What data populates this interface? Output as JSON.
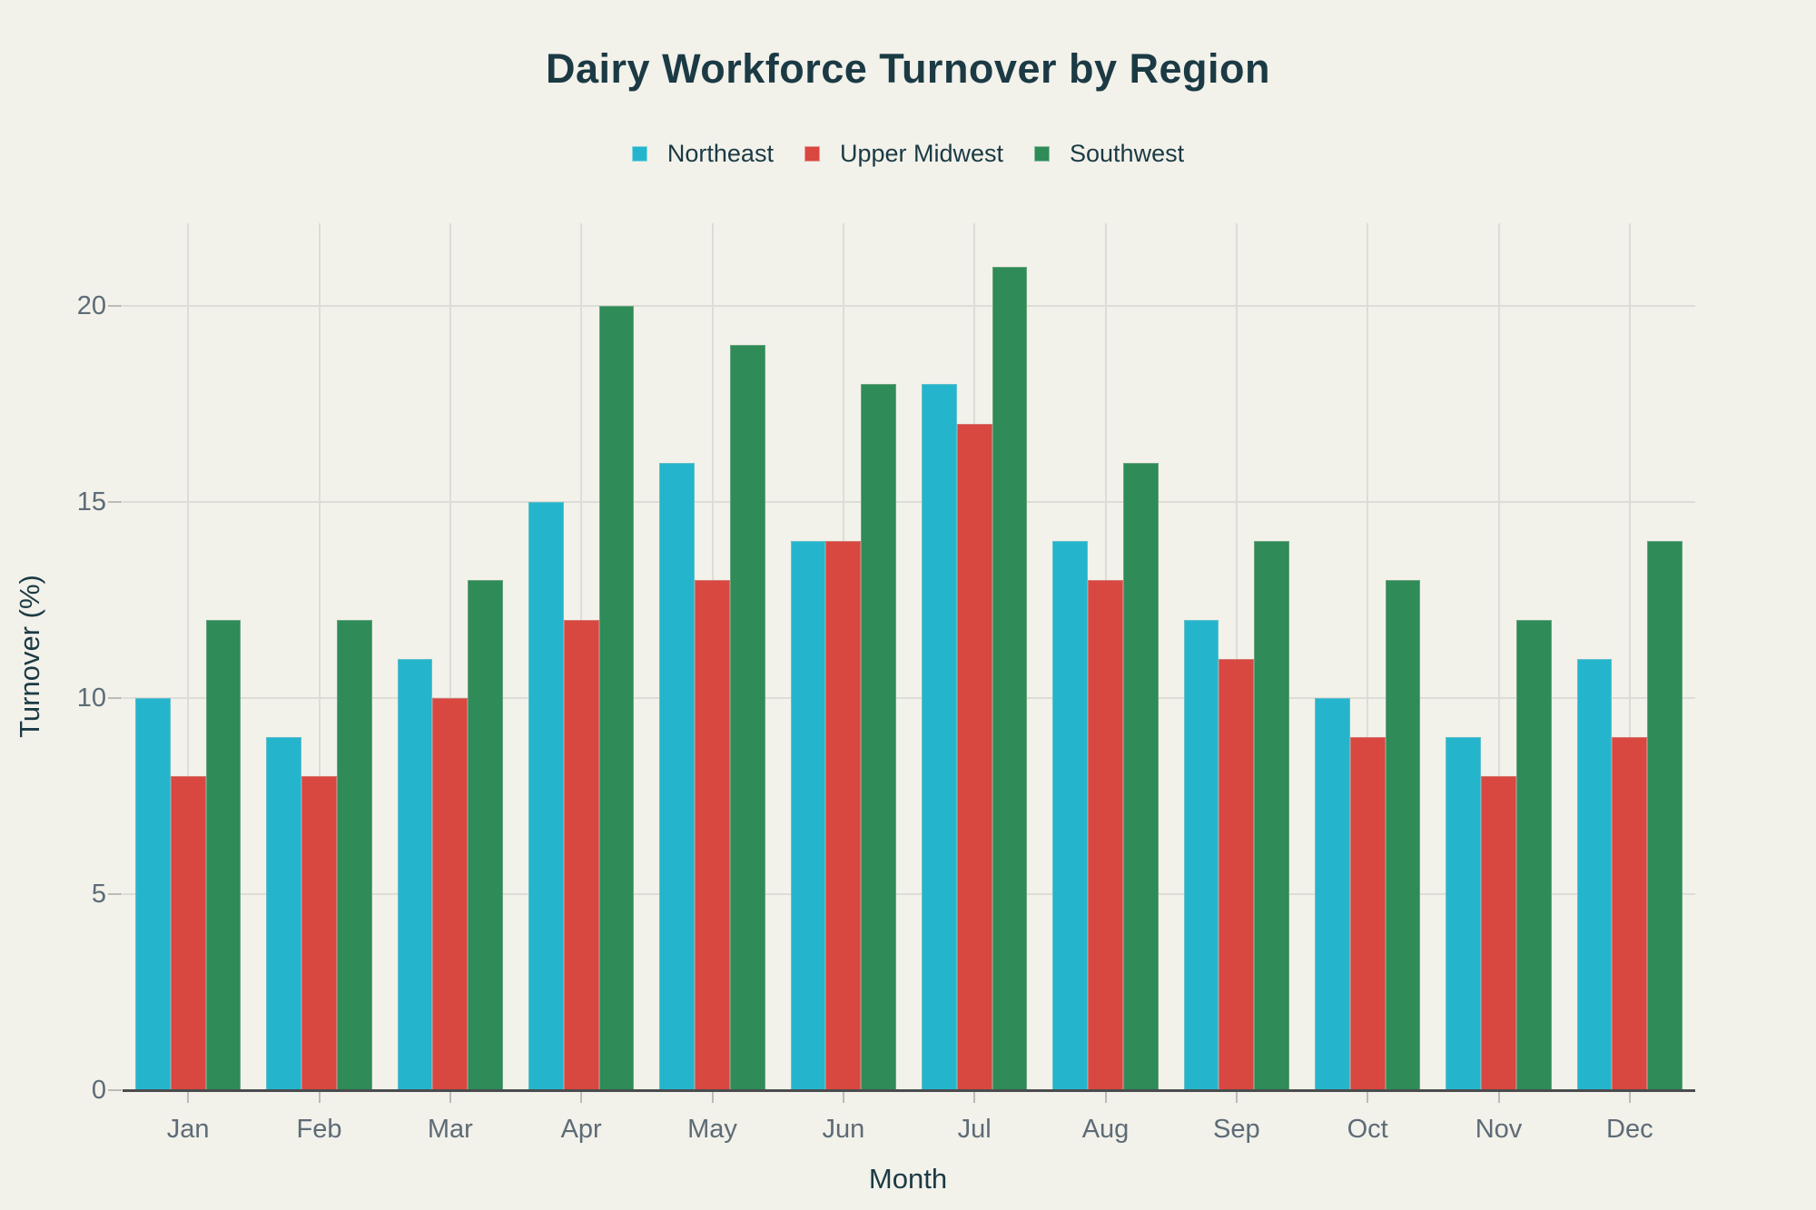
{
  "chart_data": {
    "type": "bar",
    "title": "Dairy Workforce Turnover by Region",
    "xlabel": "Month",
    "ylabel": "Turnover (%)",
    "categories": [
      "Jan",
      "Feb",
      "Mar",
      "Apr",
      "May",
      "Jun",
      "Jul",
      "Aug",
      "Sep",
      "Oct",
      "Nov",
      "Dec"
    ],
    "series": [
      {
        "name": "Northeast",
        "color": "#24b5cc",
        "values": [
          10,
          9,
          11,
          15,
          16,
          14,
          18,
          14,
          12,
          10,
          9,
          11
        ]
      },
      {
        "name": "Upper Midwest",
        "color": "#d84740",
        "values": [
          8,
          8,
          10,
          12,
          13,
          14,
          17,
          13,
          11,
          9,
          8,
          9
        ]
      },
      {
        "name": "Southwest",
        "color": "#2f8b57",
        "values": [
          12,
          12,
          13,
          20,
          19,
          18,
          21,
          16,
          14,
          13,
          12,
          14
        ]
      }
    ],
    "yticks": [
      0,
      5,
      10,
      15,
      20
    ],
    "ylim": [
      0,
      22
    ],
    "grid": true,
    "legend_position": "top"
  },
  "colors": {
    "background": "#f2f1ea",
    "grid_line": "#dedcd6",
    "axis_line": "#4a4c4e",
    "tick_mark": "#bcbbb5",
    "tick_label": "#5d6b76",
    "heading_text": "#1b3a44"
  }
}
